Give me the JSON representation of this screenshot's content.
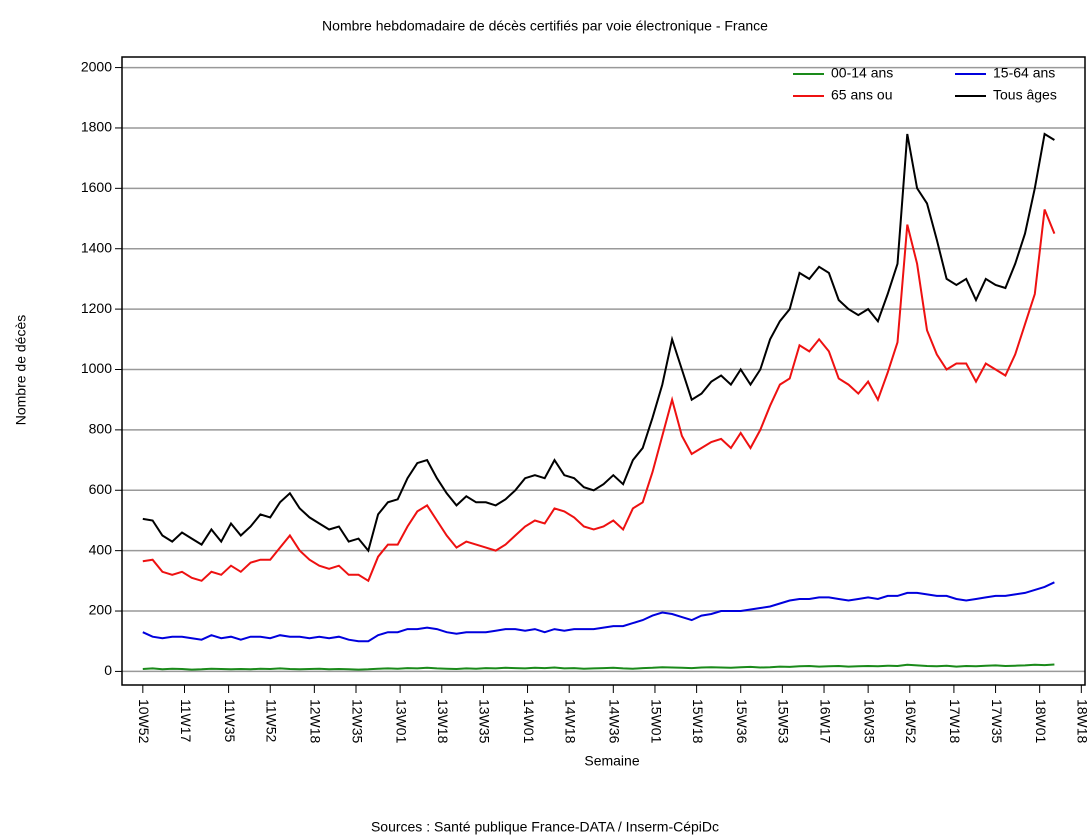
{
  "chart_data": {
    "type": "line",
    "title": "Nombre hebdomadaire de décès certifiés par voie électronique - France",
    "xlabel": "Semaine",
    "ylabel": "Nombre de décès",
    "source": "Sources : Santé publique France-DATA / Inserm-CépiDc",
    "x": [
      0,
      4,
      8,
      12,
      16,
      20,
      24,
      28,
      32,
      36,
      40,
      44,
      48,
      52,
      56,
      60,
      64,
      68,
      72,
      76,
      80,
      84,
      88,
      92,
      96,
      100,
      104,
      108,
      112,
      116,
      120,
      124,
      128,
      132,
      136,
      140,
      144,
      148,
      152,
      156,
      160,
      164,
      168,
      172,
      176,
      180,
      184,
      188,
      192,
      196,
      200,
      204,
      208,
      212,
      216,
      220,
      224,
      228,
      232,
      236,
      240,
      244,
      248,
      252,
      256,
      260,
      264,
      268,
      272,
      276,
      280,
      284,
      288,
      292,
      296,
      300,
      304,
      308,
      312,
      316,
      320,
      324,
      328,
      332,
      336,
      340,
      344,
      348,
      352,
      356,
      360,
      364,
      368,
      372
    ],
    "xlim": [
      -8.5,
      384.5
    ],
    "xticks": [
      {
        "value": 0,
        "label": "10W52"
      },
      {
        "value": 17,
        "label": "11W17"
      },
      {
        "value": 35,
        "label": "11W35"
      },
      {
        "value": 52,
        "label": "11W52"
      },
      {
        "value": 70,
        "label": "12W18"
      },
      {
        "value": 87,
        "label": "12W35"
      },
      {
        "value": 105,
        "label": "13W01"
      },
      {
        "value": 122,
        "label": "13W18"
      },
      {
        "value": 139,
        "label": "13W35"
      },
      {
        "value": 157,
        "label": "14W01"
      },
      {
        "value": 174,
        "label": "14W18"
      },
      {
        "value": 192,
        "label": "14W36"
      },
      {
        "value": 209,
        "label": "15W01"
      },
      {
        "value": 226,
        "label": "15W18"
      },
      {
        "value": 244,
        "label": "15W36"
      },
      {
        "value": 261,
        "label": "15W53"
      },
      {
        "value": 278,
        "label": "16W17"
      },
      {
        "value": 296,
        "label": "16W35"
      },
      {
        "value": 313,
        "label": "16W52"
      },
      {
        "value": 331,
        "label": "17W18"
      },
      {
        "value": 348,
        "label": "17W35"
      },
      {
        "value": 366,
        "label": "18W01"
      },
      {
        "value": 383,
        "label": "18W18"
      }
    ],
    "ylim": [
      -45,
      2035
    ],
    "yticks": [
      0,
      200,
      400,
      600,
      800,
      1000,
      1200,
      1400,
      1600,
      1800,
      2000
    ],
    "grid": true,
    "series": [
      {
        "name": "00-14 ans",
        "color": "#1a8a1a",
        "values": [
          8,
          10,
          7,
          9,
          8,
          6,
          7,
          9,
          8,
          7,
          8,
          7,
          9,
          8,
          10,
          8,
          7,
          8,
          9,
          7,
          8,
          7,
          6,
          7,
          9,
          10,
          9,
          11,
          10,
          12,
          10,
          9,
          8,
          10,
          9,
          11,
          10,
          12,
          11,
          10,
          12,
          11,
          13,
          10,
          11,
          9,
          10,
          11,
          12,
          10,
          9,
          11,
          12,
          14,
          13,
          12,
          11,
          13,
          14,
          13,
          12,
          14,
          15,
          13,
          14,
          16,
          15,
          17,
          18,
          16,
          17,
          18,
          16,
          17,
          18,
          17,
          19,
          18,
          22,
          20,
          18,
          17,
          19,
          16,
          18,
          17,
          19,
          20,
          18,
          19,
          20,
          22,
          21,
          23
        ]
      },
      {
        "name": "15-64 ans",
        "color": "#0000dd",
        "values": [
          130,
          115,
          110,
          115,
          115,
          110,
          105,
          120,
          110,
          115,
          105,
          115,
          115,
          110,
          120,
          115,
          115,
          110,
          115,
          110,
          115,
          105,
          100,
          100,
          120,
          130,
          130,
          140,
          140,
          145,
          140,
          130,
          125,
          130,
          130,
          130,
          135,
          140,
          140,
          135,
          140,
          130,
          140,
          135,
          140,
          140,
          140,
          145,
          150,
          150,
          160,
          170,
          185,
          195,
          190,
          180,
          170,
          185,
          190,
          200,
          200,
          200,
          205,
          210,
          215,
          225,
          235,
          240,
          240,
          245,
          245,
          240,
          235,
          240,
          245,
          240,
          250,
          250,
          260,
          260,
          255,
          250,
          250,
          240,
          235,
          240,
          245,
          250,
          250,
          255,
          260,
          270,
          280,
          295
        ]
      },
      {
        "name": "65 ans ou",
        "color": "#ee1111",
        "values": [
          365,
          370,
          330,
          320,
          330,
          310,
          300,
          330,
          320,
          350,
          330,
          360,
          370,
          370,
          410,
          450,
          400,
          370,
          350,
          340,
          350,
          320,
          320,
          300,
          380,
          420,
          420,
          480,
          530,
          550,
          500,
          450,
          410,
          430,
          420,
          410,
          400,
          420,
          450,
          480,
          500,
          490,
          540,
          530,
          510,
          480,
          470,
          480,
          500,
          470,
          540,
          560,
          660,
          780,
          900,
          780,
          720,
          740,
          760,
          770,
          740,
          790,
          740,
          800,
          880,
          950,
          970,
          1080,
          1060,
          1100,
          1060,
          970,
          950,
          920,
          960,
          900,
          990,
          1090,
          1480,
          1350,
          1130,
          1050,
          1000,
          1020,
          1020,
          960,
          1020,
          1000,
          980,
          1050,
          1150,
          1250,
          1530,
          1450
        ]
      },
      {
        "name": "Tous âges",
        "color": "#000000",
        "values": [
          505,
          500,
          450,
          430,
          460,
          440,
          420,
          470,
          430,
          490,
          450,
          480,
          520,
          510,
          560,
          590,
          540,
          510,
          490,
          470,
          480,
          430,
          440,
          400,
          520,
          560,
          570,
          640,
          690,
          700,
          640,
          590,
          550,
          580,
          560,
          560,
          550,
          570,
          600,
          640,
          650,
          640,
          700,
          650,
          640,
          610,
          600,
          620,
          650,
          620,
          700,
          740,
          840,
          950,
          1100,
          1000,
          900,
          920,
          960,
          980,
          950,
          1000,
          950,
          1000,
          1100,
          1160,
          1200,
          1320,
          1300,
          1340,
          1320,
          1230,
          1200,
          1180,
          1200,
          1160,
          1250,
          1350,
          1780,
          1600,
          1550,
          1430,
          1300,
          1280,
          1300,
          1230,
          1300,
          1280,
          1270,
          1350,
          1450,
          1600,
          1780,
          1760
        ]
      }
    ]
  }
}
